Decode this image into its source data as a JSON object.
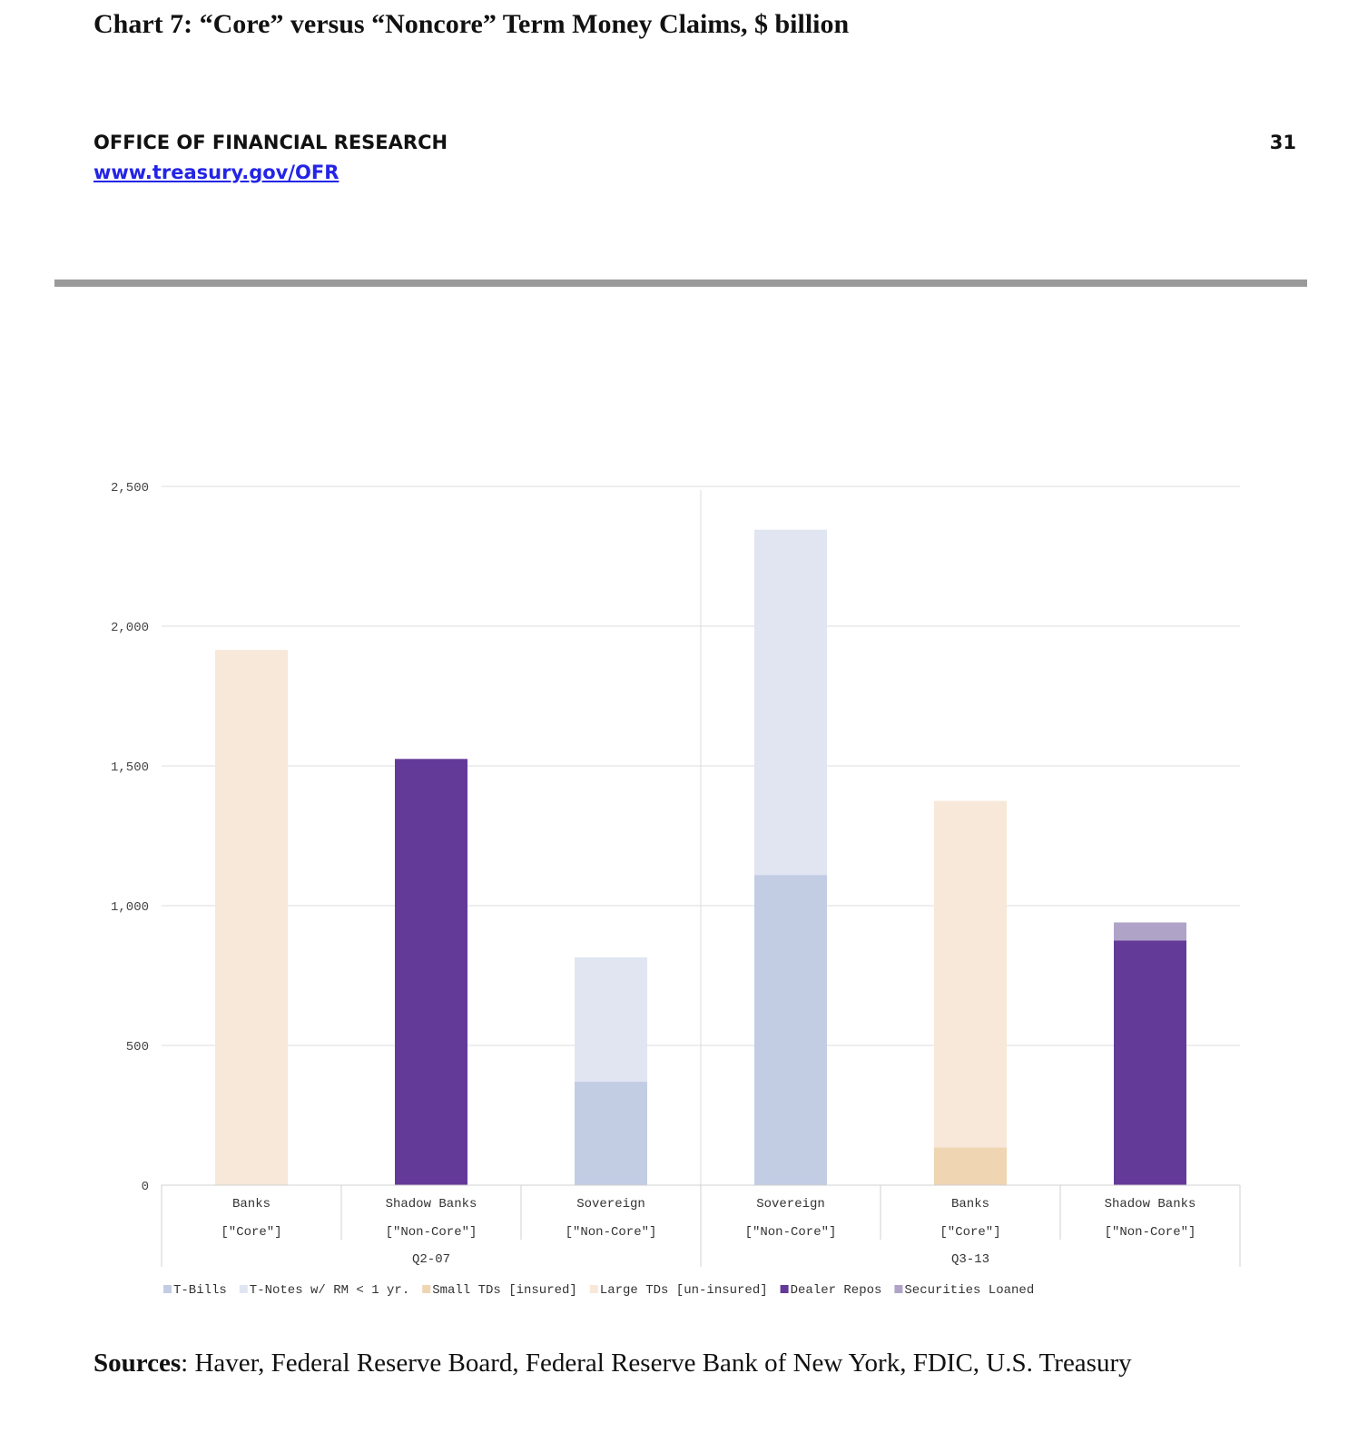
{
  "header": {
    "chart_title": "Chart 7: “Core” versus “Noncore” Term Money Claims, $ billion",
    "org_name": "OFFICE OF FINANCIAL RESEARCH",
    "org_url": "www.treasury.gov/OFR",
    "page_number": "31"
  },
  "footer": {
    "sources_label": "Sources",
    "sources_text": ": Haver, Federal Reserve Board, Federal Reserve Bank of New York, FDIC, U.S. Treasury"
  },
  "chart_data": {
    "type": "bar",
    "stacked": true,
    "title": "",
    "xlabel": "",
    "ylabel": "",
    "ylim": [
      0,
      2500
    ],
    "y_ticks": [
      0,
      500,
      1000,
      1500,
      2000,
      2500
    ],
    "y_tick_labels": [
      "0",
      "500",
      "1,000",
      "1,500",
      "2,000",
      "2,500"
    ],
    "grid": true,
    "legend_position": "bottom",
    "groups": [
      {
        "label": "Q2-07",
        "categories": [
          {
            "name": "Banks",
            "tag": "[\"Core\"]"
          },
          {
            "name": "Shadow Banks",
            "tag": "[\"Non-Core\"]"
          },
          {
            "name": "Sovereign",
            "tag": "[\"Non-Core\"]"
          }
        ]
      },
      {
        "label": "Q3-13",
        "categories": [
          {
            "name": "Sovereign",
            "tag": "[\"Non-Core\"]"
          },
          {
            "name": "Banks",
            "tag": "[\"Core\"]"
          },
          {
            "name": "Shadow Banks",
            "tag": "[\"Non-Core\"]"
          }
        ]
      }
    ],
    "series": [
      {
        "name": "T-Bills",
        "color": "#c2cde4",
        "values": [
          0,
          0,
          370,
          1110,
          0,
          0
        ]
      },
      {
        "name": "T-Notes w/ RM < 1 yr.",
        "color": "#e0e5f1",
        "values": [
          0,
          0,
          445,
          1235,
          0,
          0
        ]
      },
      {
        "name": "Small TDs [insured]",
        "color": "#efd5b2",
        "values": [
          0,
          0,
          0,
          0,
          135,
          0
        ]
      },
      {
        "name": "Large TDs [un-insured]",
        "color": "#f7e8d9",
        "values": [
          1915,
          0,
          0,
          0,
          1240,
          0
        ]
      },
      {
        "name": "Dealer Repos",
        "color": "#643a99",
        "values": [
          0,
          1525,
          0,
          0,
          0,
          875
        ]
      },
      {
        "name": "Securities Loaned",
        "color": "#b0a3c8",
        "values": [
          0,
          0,
          0,
          0,
          0,
          65
        ]
      }
    ]
  }
}
